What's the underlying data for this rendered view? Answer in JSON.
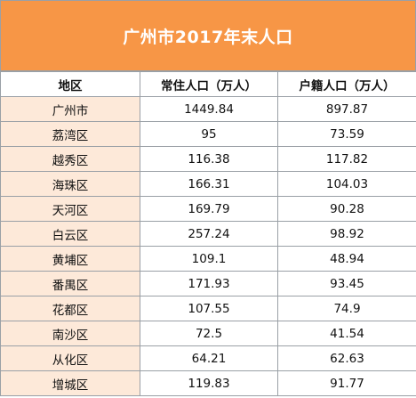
{
  "title": "广州市2017年末人口",
  "headers": {
    "district": "地区",
    "resident": "常住人口（万人）",
    "registered": "户籍人口（万人）"
  },
  "rows": [
    {
      "district": "广州市",
      "resident": "1449.84",
      "registered": "897.87"
    },
    {
      "district": "荔湾区",
      "resident": "95",
      "registered": "73.59"
    },
    {
      "district": "越秀区",
      "resident": "116.38",
      "registered": "117.82"
    },
    {
      "district": "海珠区",
      "resident": "166.31",
      "registered": "104.03"
    },
    {
      "district": "天河区",
      "resident": "169.79",
      "registered": "90.28"
    },
    {
      "district": "白云区",
      "resident": "257.24",
      "registered": "98.92"
    },
    {
      "district": "黄埔区",
      "resident": "109.1",
      "registered": "48.94"
    },
    {
      "district": "番禺区",
      "resident": "171.93",
      "registered": "93.45"
    },
    {
      "district": "花都区",
      "resident": "107.55",
      "registered": "74.9"
    },
    {
      "district": "南沙区",
      "resident": "72.5",
      "registered": "41.54"
    },
    {
      "district": "从化区",
      "resident": "64.21",
      "registered": "62.63"
    },
    {
      "district": "增城区",
      "resident": "119.83",
      "registered": "91.77"
    }
  ],
  "colors": {
    "title_background": "#f79646",
    "title_text": "#ffffff",
    "district_cell_background": "#fde9d9",
    "grid_line": "#9aa0a6"
  }
}
